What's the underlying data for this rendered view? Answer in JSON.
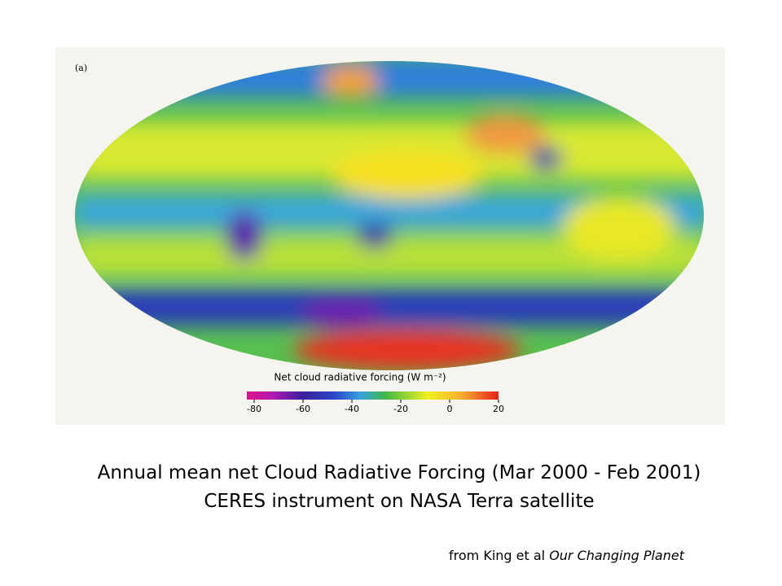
{
  "figure": {
    "panel_label": "(a)",
    "colorbar": {
      "title": "Net cloud radiative forcing (W m⁻²)",
      "lim": [
        -83,
        20
      ],
      "ticks": [
        -80,
        -60,
        -40,
        -20,
        0,
        20
      ]
    }
  },
  "caption": {
    "line1": "Annual mean net Cloud Radiative Forcing (Mar 2000 - Feb 2001)",
    "line2": "CERES instrument on NASA Terra satellite"
  },
  "source": {
    "prefix": "from King et al",
    "book": "Our Changing Planet"
  }
}
